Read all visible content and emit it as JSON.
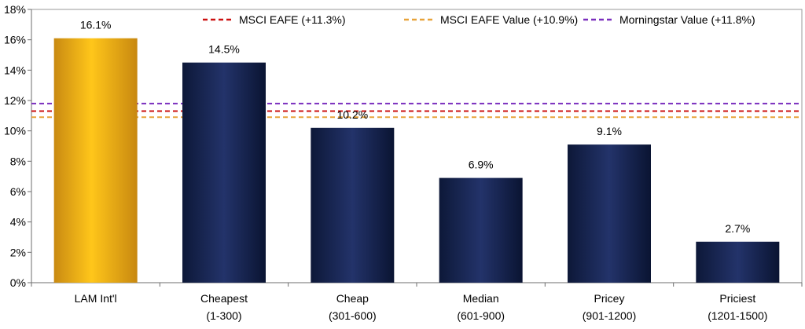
{
  "chart_data": {
    "type": "bar",
    "categories": [
      {
        "line1": "LAM Int'l",
        "line2": ""
      },
      {
        "line1": "Cheapest",
        "line2": "(1-300)"
      },
      {
        "line1": "Cheap",
        "line2": "(301-600)"
      },
      {
        "line1": "Median",
        "line2": "(601-900)"
      },
      {
        "line1": "Pricey",
        "line2": "(901-1200)"
      },
      {
        "line1": "Priciest",
        "line2": "(1201-1500)"
      }
    ],
    "values": [
      16.1,
      14.5,
      10.2,
      6.9,
      9.1,
      2.7
    ],
    "value_labels": [
      "16.1%",
      "14.5%",
      "10.2%",
      "6.9%",
      "9.1%",
      "2.7%"
    ],
    "bar_styles": [
      "gold",
      "navy",
      "navy",
      "navy",
      "navy",
      "navy"
    ],
    "reference_lines": [
      {
        "name": "MSCI EAFE (+11.3%)",
        "value": 11.3,
        "color": "#cc1111"
      },
      {
        "name": "MSCI EAFE Value (+10.9%)",
        "value": 10.9,
        "color": "#e8a33a"
      },
      {
        "name": "Morningstar Value (+11.8%)",
        "value": 11.8,
        "color": "#7b2fbe"
      }
    ],
    "ylim": [
      0,
      18
    ],
    "yticks": [
      {
        "value": 0,
        "label": "0%"
      },
      {
        "value": 2,
        "label": "2%"
      },
      {
        "value": 4,
        "label": "4%"
      },
      {
        "value": 6,
        "label": "6%"
      },
      {
        "value": 8,
        "label": "8%"
      },
      {
        "value": 10,
        "label": "10%"
      },
      {
        "value": 12,
        "label": "12%"
      },
      {
        "value": 14,
        "label": "14%"
      },
      {
        "value": 16,
        "label": "16%"
      },
      {
        "value": 18,
        "label": "18%"
      }
    ],
    "grid": false,
    "legend_position": "top"
  }
}
